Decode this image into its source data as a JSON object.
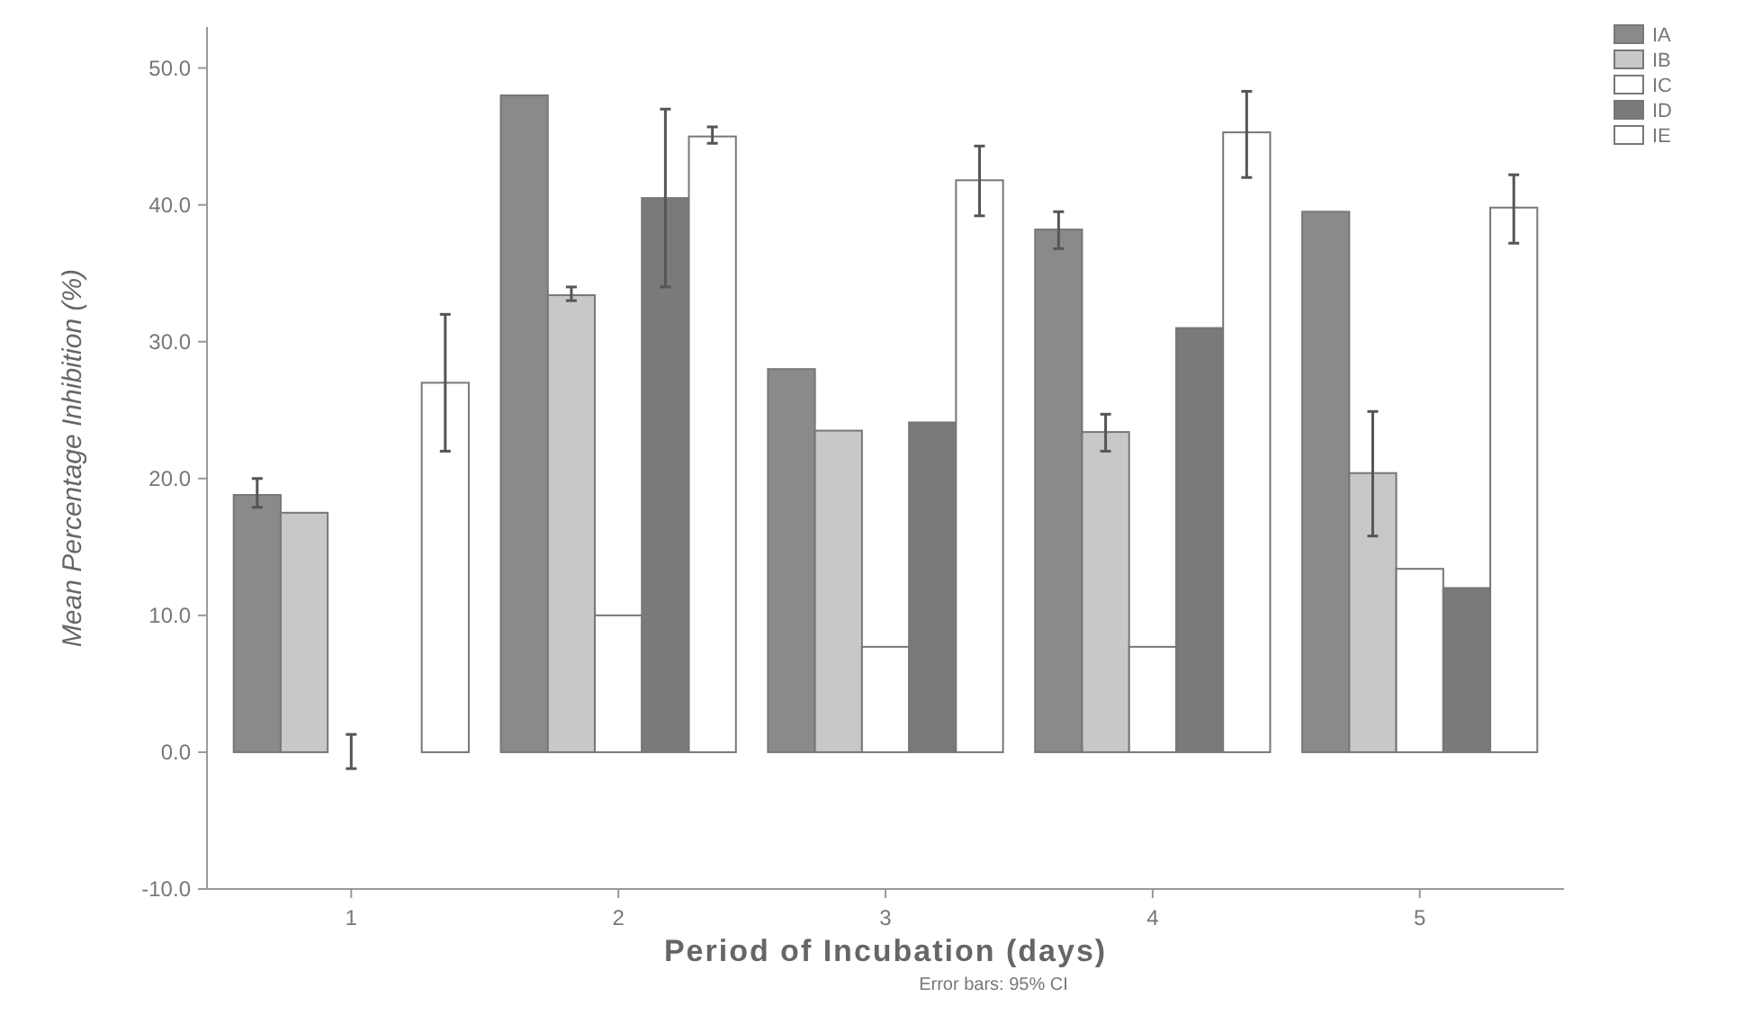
{
  "chart_data": {
    "type": "bar",
    "xlabel": "Period of Incubation (days)",
    "ylabel": "Mean Percentage Inhibition (%)",
    "categories": [
      "1",
      "2",
      "3",
      "4",
      "5"
    ],
    "series": [
      {
        "name": "IA",
        "color": "#8a8a8a",
        "values": [
          18.8,
          48,
          28,
          38.2,
          39.5
        ],
        "errors": [
          [
            17.9,
            20
          ],
          null,
          null,
          [
            36.8,
            39.5
          ],
          null
        ]
      },
      {
        "name": "IB",
        "color": "#c8c8c8",
        "values": [
          17.5,
          33.4,
          23.5,
          23.4,
          20.4
        ],
        "errors": [
          null,
          [
            33,
            34
          ],
          null,
          [
            22,
            24.7
          ],
          [
            15.8,
            24.9
          ]
        ]
      },
      {
        "name": "IC",
        "color": "#ffffff",
        "values": [
          0,
          10,
          7.7,
          7.7,
          13.4
        ],
        "errors": [
          [
            -1.2,
            1.3
          ],
          null,
          null,
          null,
          null
        ]
      },
      {
        "name": "ID",
        "color": "#7a7a7a",
        "values": [
          0,
          40.5,
          24.1,
          31,
          12
        ],
        "errors": [
          null,
          [
            34,
            47
          ],
          null,
          null,
          null
        ]
      },
      {
        "name": "IE",
        "color": "#ffffff",
        "values": [
          27,
          45,
          41.8,
          45.3,
          39.8
        ],
        "errors": [
          [
            22,
            32
          ],
          [
            44.5,
            45.7
          ],
          [
            39.2,
            44.3
          ],
          [
            42,
            48.3
          ],
          [
            37.2,
            42.2
          ]
        ]
      }
    ],
    "ylim": [
      -10,
      53
    ],
    "yticks": [
      {
        "value": -10,
        "label": "-10.0"
      },
      {
        "value": 0,
        "label": "0.0"
      },
      {
        "value": 10,
        "label": "10.0"
      },
      {
        "value": 20,
        "label": "20.0"
      },
      {
        "value": 30,
        "label": "30.0"
      },
      {
        "value": 40,
        "label": "40.0"
      },
      {
        "value": 50,
        "label": "50.0"
      }
    ],
    "legend": "top right",
    "annotations": [
      "Error bars: 95% CI"
    ]
  }
}
